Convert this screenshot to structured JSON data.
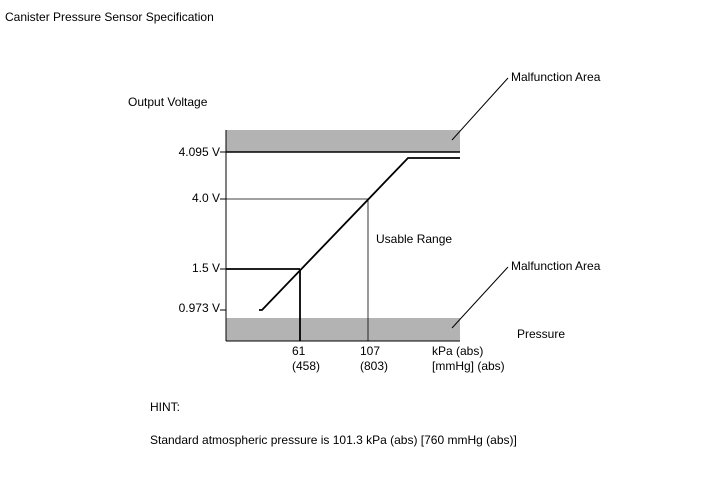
{
  "title": "Canister Pressure Sensor Specification",
  "diagram": {
    "y_axis_label": "Output Voltage",
    "y_labels": [
      "4.095 V",
      "4.0 V",
      "1.5 V",
      "0.973 V"
    ],
    "x_labels": [
      {
        "kpa": "61",
        "mmhg": "(458)"
      },
      {
        "kpa": "107",
        "mmhg": "(803)"
      }
    ],
    "x_unit": {
      "kpa": "kPa (abs)",
      "mmhg": "[mmHg] (abs)"
    },
    "x_axis_label": "Pressure",
    "usable_range": "Usable Range",
    "malfunction_upper": "Malfunction Area",
    "malfunction_lower": "Malfunction Area"
  },
  "hint": {
    "label": "HINT:",
    "text": "Standard atmospheric pressure is 101.3 kPa (abs) [760 mmHg (abs)]"
  }
}
